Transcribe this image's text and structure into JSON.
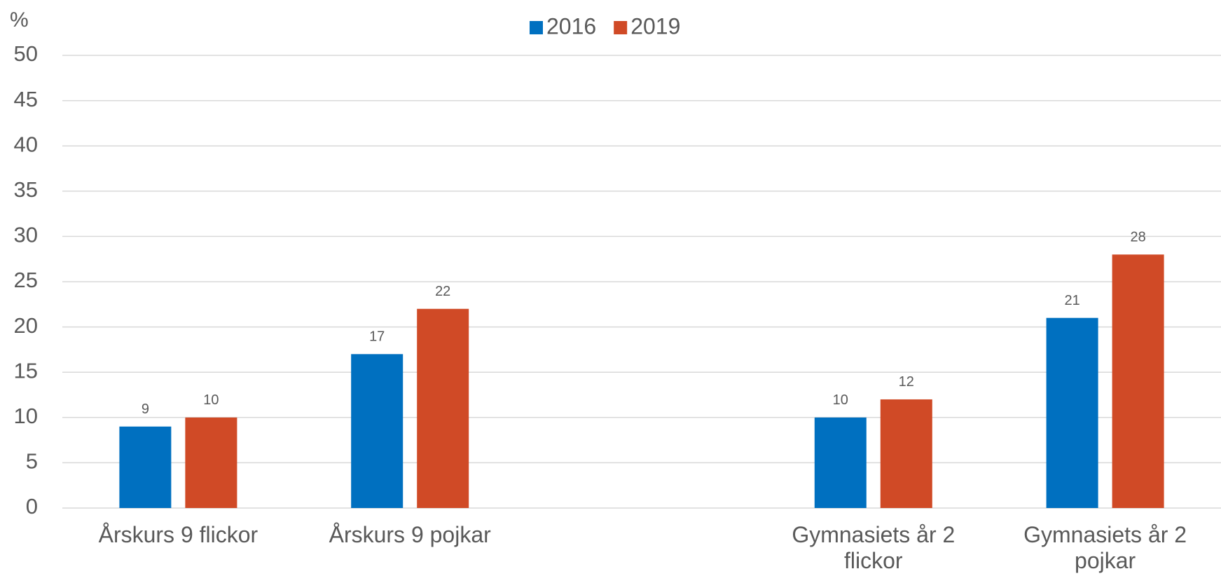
{
  "chart_data": {
    "type": "bar",
    "y_unit_label": "%",
    "categories": [
      "Årskurs 9 flickor",
      "Årskurs 9 pojkar",
      null,
      "Gymnasiets år 2 flickor",
      "Gymnasiets år 2 pojkar"
    ],
    "series": [
      {
        "name": "2016",
        "color": "#0070c0",
        "values": [
          9,
          17,
          null,
          10,
          21
        ]
      },
      {
        "name": "2019",
        "color": "#d04a26",
        "values": [
          10,
          22,
          null,
          12,
          28
        ]
      }
    ],
    "ylim": [
      0,
      50
    ],
    "yticks": [
      0,
      5,
      10,
      15,
      20,
      25,
      30,
      35,
      40,
      45,
      50
    ],
    "grid": true,
    "legend": "top"
  }
}
